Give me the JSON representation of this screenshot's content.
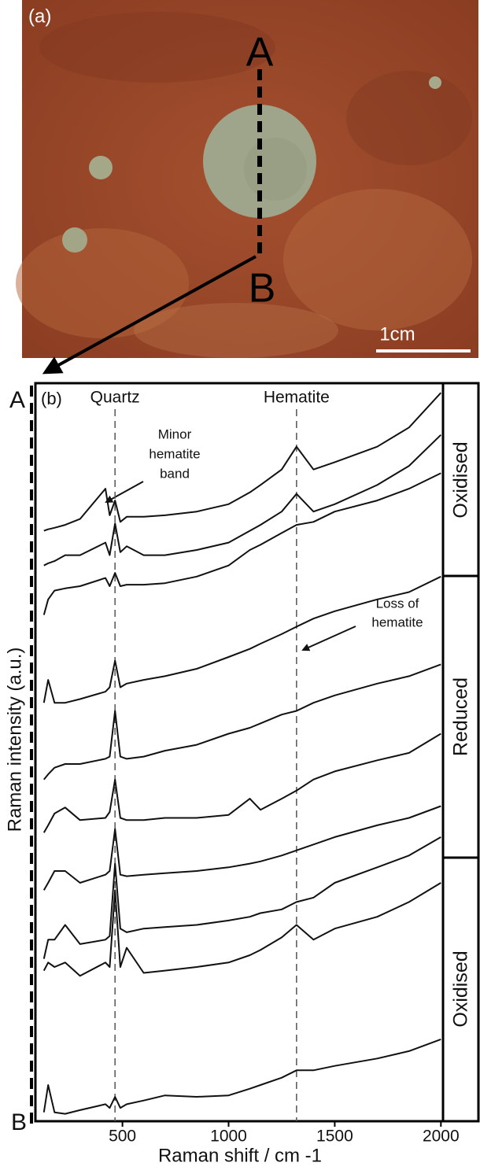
{
  "photo": {
    "label": "(a)",
    "line_start": "A",
    "line_end": "B",
    "scale_bar": "1cm"
  },
  "chart_data": {
    "type": "line",
    "panel_label": "(b)",
    "x_label": "Raman shift / cm -1",
    "y_label": "Raman intensity (a.u.)",
    "profile_start": "A",
    "profile_end": "B",
    "reference_lines": [
      {
        "value": 465,
        "label": "Quartz"
      },
      {
        "value": 1320,
        "label": "Hematite"
      }
    ],
    "annotations": [
      {
        "lines": [
          "Minor",
          "hematite",
          "band"
        ]
      },
      {
        "lines": [
          "Loss of",
          "hematite"
        ]
      }
    ],
    "zones": [
      "Oxidised",
      "Reduced",
      "Oxidised"
    ],
    "xlim": [
      90,
      2010
    ],
    "xticks": [
      500,
      1000,
      1500,
      2000
    ],
    "ylim": [
      0,
      100
    ],
    "x": [
      130,
      150,
      180,
      230,
      300,
      420,
      440,
      465,
      490,
      520,
      600,
      700,
      850,
      1000,
      1100,
      1150,
      1250,
      1320,
      1400,
      1500,
      1700,
      1850,
      2000
    ],
    "series": [
      {
        "color": "#111111",
        "values": [
          80.0,
          80.2,
          80.4,
          80.8,
          81.6,
          85.7,
          82.1,
          84.1,
          81.2,
          81.9,
          81.9,
          82.1,
          82.6,
          83.6,
          85.2,
          86.2,
          88.3,
          91.4,
          88.3,
          89.3,
          91.4,
          94.0,
          98.7
        ]
      },
      {
        "color": "#111111",
        "values": [
          75.3,
          75.6,
          75.9,
          76.7,
          76.7,
          78.4,
          76.7,
          81.0,
          77.1,
          77.9,
          76.7,
          76.7,
          77.4,
          78.4,
          80.0,
          80.8,
          82.6,
          85.0,
          82.6,
          83.6,
          86.2,
          88.8,
          93.0
        ]
      },
      {
        "color": "#111111",
        "values": [
          68.6,
          70.7,
          71.9,
          72.2,
          72.5,
          73.6,
          72.5,
          74.3,
          72.5,
          72.7,
          72.7,
          72.9,
          73.8,
          75.3,
          77.4,
          78.1,
          79.7,
          80.8,
          81.2,
          82.6,
          84.1,
          85.7,
          87.8
        ]
      },
      {
        "color": "#111111",
        "values": [
          56.7,
          59.8,
          56.7,
          56.7,
          57.2,
          58.2,
          58.8,
          62.4,
          58.8,
          59.3,
          59.8,
          60.3,
          61.3,
          62.9,
          64.0,
          64.7,
          66.0,
          67.0,
          68.1,
          69.1,
          70.7,
          71.7,
          73.8
        ]
      },
      {
        "color": "#111111",
        "values": [
          46.3,
          47.0,
          47.9,
          48.4,
          48.4,
          49.1,
          49.4,
          55.6,
          49.4,
          49.1,
          49.4,
          50.2,
          51.0,
          52.5,
          53.3,
          53.9,
          55.1,
          55.6,
          56.7,
          57.7,
          59.3,
          60.3,
          61.9
        ]
      },
      {
        "color": "#111111",
        "values": [
          39.1,
          40.1,
          41.7,
          42.5,
          40.8,
          41.1,
          41.9,
          46.3,
          41.1,
          40.8,
          40.8,
          41.1,
          41.1,
          41.5,
          43.7,
          42.2,
          43.7,
          44.8,
          46.3,
          47.4,
          48.9,
          49.9,
          52.5
        ]
      },
      {
        "color": "#111111",
        "values": [
          31.3,
          32.3,
          33.9,
          33.9,
          32.3,
          33.4,
          33.9,
          39.6,
          33.4,
          33.2,
          33.4,
          33.6,
          33.9,
          34.4,
          34.9,
          35.2,
          36.0,
          36.7,
          37.5,
          38.5,
          40.1,
          41.1,
          42.7
        ]
      },
      {
        "color": "#111111",
        "values": [
          22.0,
          24.6,
          24.6,
          26.6,
          24.0,
          24.6,
          25.1,
          34.9,
          26.1,
          25.6,
          26.1,
          26.3,
          26.6,
          27.2,
          27.7,
          28.2,
          28.7,
          29.7,
          30.3,
          32.3,
          34.4,
          36.0,
          38.5
        ]
      },
      {
        "color": "#111111",
        "values": [
          20.4,
          21.5,
          20.9,
          21.5,
          19.7,
          21.5,
          20.9,
          31.3,
          20.9,
          23.5,
          20.1,
          20.4,
          20.9,
          21.5,
          22.5,
          23.2,
          24.9,
          26.6,
          24.6,
          26.1,
          27.7,
          29.7,
          32.3
        ]
      },
      {
        "color": "#111111",
        "values": [
          1.2,
          4.9,
          1.2,
          1.0,
          1.5,
          2.3,
          1.8,
          3.3,
          1.8,
          2.3,
          2.8,
          3.5,
          3.3,
          3.5,
          4.4,
          4.9,
          5.9,
          6.9,
          6.9,
          7.5,
          8.5,
          9.5,
          11.1
        ]
      }
    ]
  }
}
